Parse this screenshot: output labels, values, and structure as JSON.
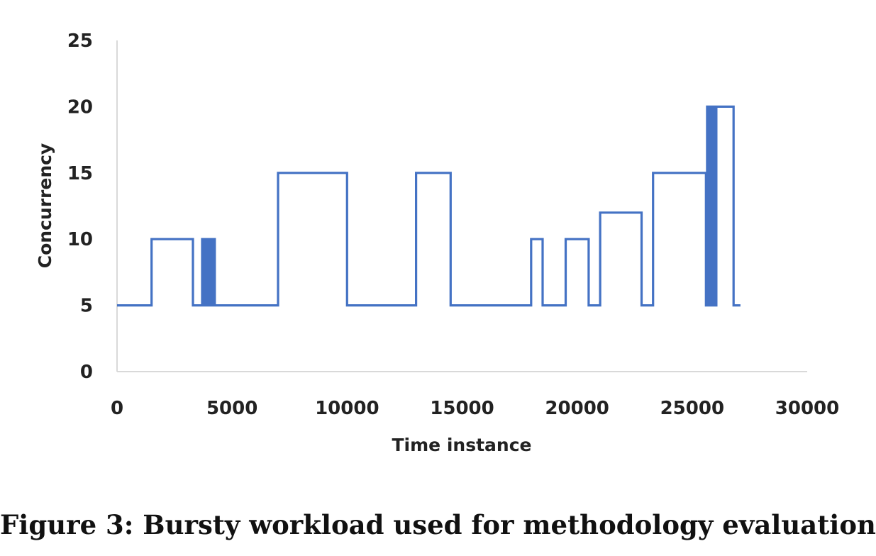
{
  "chart_data": {
    "type": "line",
    "title": "",
    "xlabel": "Time instance",
    "ylabel": "Concurrency",
    "xlim": [
      0,
      30000
    ],
    "ylim": [
      0,
      25
    ],
    "x_ticks": [
      "0",
      "5000",
      "10000",
      "15000",
      "20000",
      "25000",
      "30000"
    ],
    "y_ticks": [
      "0",
      "5",
      "10",
      "15",
      "20",
      "25"
    ],
    "grid": false,
    "legend": "none",
    "series": [
      {
        "color": "#4472c4",
        "step": true,
        "x": [
          0,
          1500,
          1500,
          3300,
          3300,
          3700,
          3700,
          3750,
          3750,
          3800,
          3800,
          3850,
          3850,
          3900,
          3900,
          3950,
          3950,
          4000,
          4000,
          4050,
          4050,
          4100,
          4100,
          4150,
          4150,
          4200,
          4200,
          4250,
          4250,
          4300,
          4300,
          7000,
          7000,
          10000,
          10000,
          13000,
          13000,
          14500,
          14500,
          18000,
          18000,
          18500,
          18500,
          19500,
          19500,
          20500,
          20500,
          21000,
          21000,
          22800,
          22800,
          23300,
          23300,
          25600,
          25600,
          25650,
          25650,
          25700,
          25700,
          25750,
          25750,
          25800,
          25800,
          25850,
          25850,
          25900,
          25900,
          25950,
          25950,
          26000,
          26000,
          26050,
          26050,
          26100,
          26100,
          26800,
          26800,
          27100
        ],
        "y": [
          5,
          5,
          10,
          10,
          5,
          5,
          10,
          10,
          5,
          5,
          10,
          10,
          5,
          5,
          10,
          10,
          5,
          5,
          10,
          10,
          5,
          5,
          10,
          10,
          5,
          5,
          10,
          10,
          5,
          5,
          5,
          5,
          15,
          15,
          5,
          5,
          15,
          15,
          5,
          5,
          10,
          10,
          5,
          5,
          10,
          10,
          5,
          5,
          12,
          12,
          5,
          5,
          15,
          15,
          5,
          5,
          20,
          20,
          5,
          5,
          20,
          20,
          5,
          5,
          20,
          20,
          5,
          5,
          20,
          20,
          5,
          5,
          20,
          20,
          20,
          20,
          5,
          5
        ]
      }
    ]
  },
  "caption": "Figure 3: Bursty workload used for methodology evaluation"
}
